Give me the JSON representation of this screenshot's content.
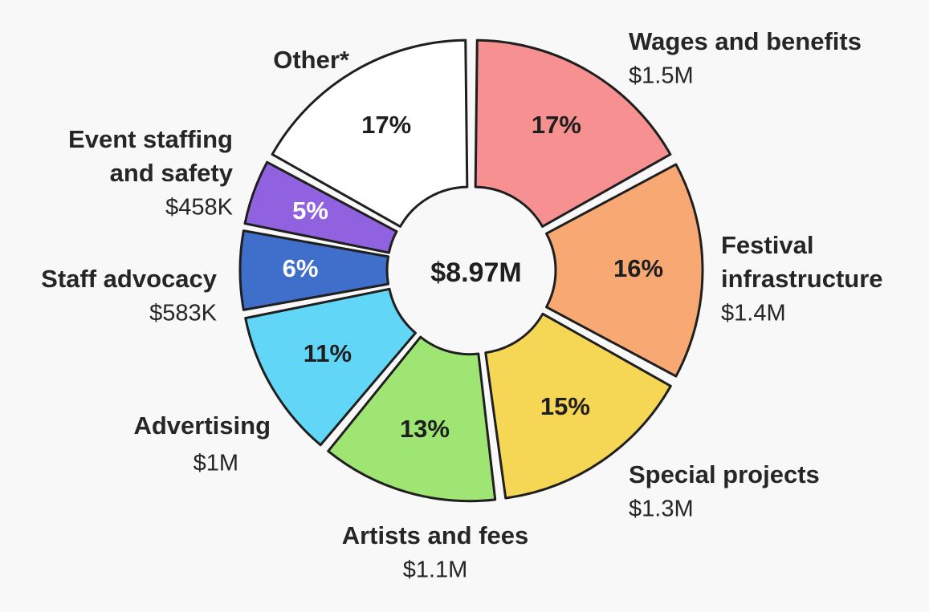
{
  "chart_data": {
    "type": "pie",
    "variant": "donut",
    "center_label": "$8.97M",
    "slices": [
      {
        "label": [
          "Wages and benefits"
        ],
        "amount": "$1.5M",
        "percent": 17,
        "percent_label": "17%",
        "color": "#f79090",
        "text_color": "#1f1f1f"
      },
      {
        "label": [
          "Festival",
          "infrastructure"
        ],
        "amount": "$1.4M",
        "percent": 16,
        "percent_label": "16%",
        "color": "#f7a873",
        "text_color": "#1f1f1f"
      },
      {
        "label": [
          "Special projects"
        ],
        "amount": "$1.3M",
        "percent": 15,
        "percent_label": "15%",
        "color": "#f5d655",
        "text_color": "#1f1f1f"
      },
      {
        "label": [
          "Artists and fees"
        ],
        "amount": "$1.1M",
        "percent": 13,
        "percent_label": "13%",
        "color": "#9fe574",
        "text_color": "#1f1f1f"
      },
      {
        "label": [
          "Advertising"
        ],
        "amount": "$1M",
        "percent": 11,
        "percent_label": "11%",
        "color": "#62d6f6",
        "text_color": "#1f1f1f"
      },
      {
        "label": [
          "Staff advocacy"
        ],
        "amount": "$583K",
        "percent": 6,
        "percent_label": "6%",
        "color": "#3f6fcb",
        "text_color": "#ffffff"
      },
      {
        "label": [
          "Event staffing",
          "and safety"
        ],
        "amount": "$458K",
        "percent": 5,
        "percent_label": "5%",
        "color": "#9162df",
        "text_color": "#ffffff"
      },
      {
        "label": [
          "Other*"
        ],
        "amount": "",
        "percent": 17,
        "percent_label": "17%",
        "color": "#ffffff",
        "text_color": "#1f1f1f"
      }
    ]
  }
}
